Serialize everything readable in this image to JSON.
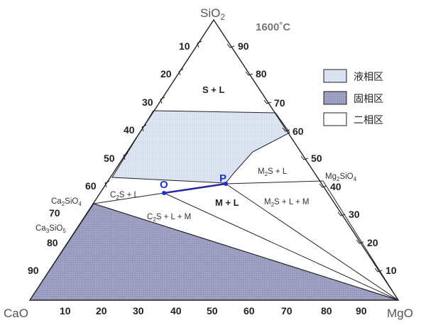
{
  "temperature": "1600˚C",
  "vertices": {
    "top": {
      "label": "SiO",
      "sub": "2"
    },
    "left": {
      "label": "CaO"
    },
    "right": {
      "label": "MgO"
    }
  },
  "bottom_ticks": [
    "10",
    "20",
    "30",
    "40",
    "50",
    "60",
    "70",
    "80",
    "90"
  ],
  "left_ticks": [
    "10",
    "20",
    "30",
    "40",
    "50",
    "60",
    "70",
    "80",
    "90"
  ],
  "right_ticks": [
    "90",
    "80",
    "70",
    "60",
    "50",
    "40",
    "30",
    "20",
    "10"
  ],
  "phases": {
    "ca2sio4": {
      "a": "Ca",
      "a_sub": "2",
      "b": "SiO",
      "b_sub": "4"
    },
    "ca3sio5": {
      "a": "Ca",
      "a_sub": "3",
      "b": "SiO",
      "b_sub": "5"
    },
    "mg2sio4": {
      "a": "Mg",
      "a_sub": "2",
      "b": "SiO",
      "b_sub": "4"
    }
  },
  "regions": {
    "s_l": "S + L",
    "m_l": "M + L",
    "c2s_l": {
      "pre": "C",
      "sub": "2",
      "post": "S + L"
    },
    "c2s_l_m": {
      "pre": "C",
      "sub": "2",
      "post": "S + L + M"
    },
    "m2s_l": {
      "pre": "M",
      "sub": "2",
      "post": "S + L"
    },
    "m2s_l_m": {
      "pre": "M",
      "sub": "2",
      "post": "S + L + M"
    }
  },
  "points": {
    "o": "O",
    "p": "P"
  },
  "legend": [
    {
      "label": "液相区",
      "style": "liquid"
    },
    {
      "label": "固相区",
      "style": "solid"
    },
    {
      "label": "二相区",
      "style": "two-phase"
    }
  ],
  "colors": {
    "liquid_fill": "#dde6f2",
    "solid_fill": "#9a9cc0",
    "line": "#222222",
    "op_line": "#2a2a9a",
    "point": "#1a33cc"
  }
}
